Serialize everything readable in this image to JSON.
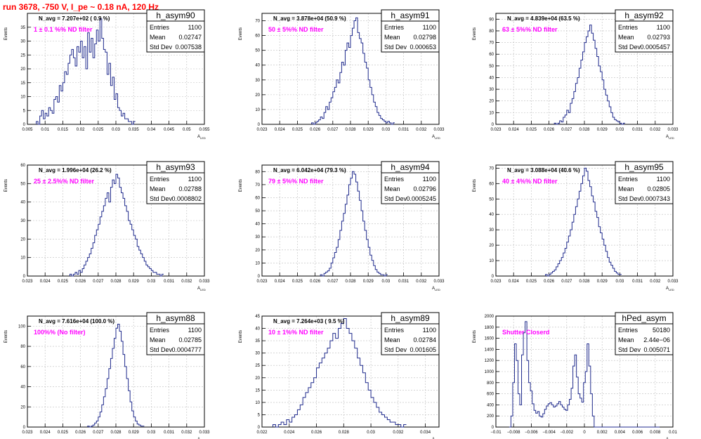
{
  "page_title": "run 3678,  -750 V, I_pe ~ 0.18 nA, 120 Hz",
  "stat_labels": {
    "entries": "Entries",
    "mean": "Mean",
    "stddev": "Std Dev"
  },
  "y_axis_label": "Events",
  "x_axis_label": "A",
  "x_axis_label_sub": "LED",
  "colors": {
    "line": "#1f2a8c",
    "annotation": "#ff00ff",
    "title": "#ff0000",
    "grid": "#bdbdbd"
  },
  "chart_data": [
    {
      "type": "histogram",
      "name": "h_asym90",
      "navg_text": "N_avg = 7.207e+02 ( 0.9 %)",
      "filter_text": "1 ± 0.1 %% ND filter",
      "entries": "1100",
      "mean": "0.02747",
      "stddev": "0.007538",
      "xlim": [
        0.005,
        0.055
      ],
      "ylim": [
        0,
        40
      ],
      "x_ticks": [
        0.005,
        0.01,
        0.015,
        0.02,
        0.025,
        0.03,
        0.035,
        0.04,
        0.045,
        0.05,
        0.055
      ],
      "x_tick_labels": [
        "0.005",
        "0.01",
        "0.015",
        "0.02",
        "0.025",
        "0.03",
        "0.035",
        "0.04",
        "0.045",
        "0.05",
        "0.055"
      ],
      "y_ticks": [
        0,
        5,
        10,
        15,
        20,
        25,
        30,
        35
      ],
      "bin_start": 0.0075,
      "bin_width": 0.0005,
      "counts": [
        1,
        0,
        3,
        5,
        2,
        4,
        3,
        6,
        5,
        4,
        9,
        10,
        8,
        14,
        12,
        15,
        19,
        18,
        22,
        25,
        27,
        24,
        21,
        28,
        26,
        30,
        24,
        28,
        20,
        33,
        26,
        31,
        24,
        29,
        34,
        30,
        38,
        31,
        27,
        26,
        18,
        22,
        14,
        17,
        9,
        11,
        6,
        5,
        3,
        4,
        2,
        2,
        1,
        1,
        0,
        1
      ]
    },
    {
      "type": "histogram",
      "name": "h_asym91",
      "navg_text": "N_avg = 3.878e+04 (50.9 %)",
      "filter_text": "50 ± 5%% ND filter",
      "entries": "1100",
      "mean": "0.02798",
      "stddev": "0.000653",
      "xlim": [
        0.023,
        0.033
      ],
      "ylim": [
        0,
        75
      ],
      "x_ticks": [
        0.023,
        0.024,
        0.025,
        0.026,
        0.027,
        0.028,
        0.029,
        0.03,
        0.031,
        0.032,
        0.033
      ],
      "x_tick_labels": [
        "0.023",
        "0.024",
        "0.025",
        "0.026",
        "0.027",
        "0.028",
        "0.029",
        "0.03",
        "0.031",
        "0.032",
        "0.033"
      ],
      "y_ticks": [
        0,
        10,
        20,
        30,
        40,
        50,
        60,
        70
      ],
      "bin_start": 0.0258,
      "bin_width": 0.0001,
      "counts": [
        1,
        0,
        1,
        2,
        3,
        5,
        4,
        8,
        12,
        10,
        15,
        18,
        22,
        25,
        30,
        28,
        35,
        42,
        40,
        50,
        55,
        52,
        60,
        65,
        70,
        72,
        62,
        58,
        55,
        48,
        42,
        38,
        30,
        25,
        20,
        15,
        12,
        8,
        6,
        4,
        3,
        2,
        1,
        2,
        1,
        0,
        1
      ]
    },
    {
      "type": "histogram",
      "name": "h_asym92",
      "navg_text": "N_avg = 4.839e+04 (63.5 %)",
      "filter_text": "63 ± 5%% ND filter",
      "entries": "1100",
      "mean": "0.02793",
      "stddev": "0.0005457",
      "xlim": [
        0.023,
        0.033
      ],
      "ylim": [
        0,
        95
      ],
      "x_ticks": [
        0.023,
        0.024,
        0.025,
        0.026,
        0.027,
        0.028,
        0.029,
        0.03,
        0.031,
        0.032,
        0.033
      ],
      "x_tick_labels": [
        "0.023",
        "0.024",
        "0.025",
        "0.026",
        "0.027",
        "0.028",
        "0.029",
        "0.03",
        "0.031",
        "0.032",
        "0.033"
      ],
      "y_ticks": [
        0,
        10,
        20,
        30,
        40,
        50,
        60,
        70,
        80,
        90
      ],
      "bin_start": 0.0263,
      "bin_width": 0.0001,
      "counts": [
        1,
        0,
        1,
        3,
        2,
        6,
        8,
        12,
        10,
        18,
        22,
        28,
        35,
        40,
        48,
        55,
        62,
        70,
        75,
        80,
        85,
        78,
        72,
        65,
        58,
        50,
        45,
        38,
        30,
        25,
        20,
        15,
        10,
        6,
        4,
        3,
        2,
        1,
        0,
        1
      ]
    },
    {
      "type": "histogram",
      "name": "h_asym93",
      "navg_text": "N_avg = 1.996e+04 (26.2 %)",
      "filter_text": "25 ± 2.5%% ND filter",
      "entries": "1100",
      "mean": "0.02788",
      "stddev": "0.0008802",
      "xlim": [
        0.023,
        0.033
      ],
      "ylim": [
        0,
        60
      ],
      "x_ticks": [
        0.023,
        0.024,
        0.025,
        0.026,
        0.027,
        0.028,
        0.029,
        0.03,
        0.031,
        0.032,
        0.033
      ],
      "x_tick_labels": [
        "0.023",
        "0.024",
        "0.025",
        "0.026",
        "0.027",
        "0.028",
        "0.029",
        "0.03",
        "0.031",
        "0.032",
        "0.033"
      ],
      "y_ticks": [
        0,
        10,
        20,
        30,
        40,
        50,
        60
      ],
      "bin_start": 0.0254,
      "bin_width": 0.0001,
      "counts": [
        1,
        0,
        1,
        2,
        1,
        3,
        2,
        4,
        6,
        8,
        10,
        12,
        15,
        18,
        22,
        25,
        28,
        32,
        35,
        38,
        42,
        45,
        40,
        48,
        52,
        50,
        55,
        53,
        48,
        45,
        42,
        38,
        35,
        30,
        28,
        25,
        22,
        20,
        16,
        14,
        12,
        10,
        8,
        6,
        5,
        4,
        3,
        2,
        2,
        1,
        1,
        0,
        1
      ]
    },
    {
      "type": "histogram",
      "name": "h_asym94",
      "navg_text": "N_avg = 6.042e+04 (79.3 %)",
      "filter_text": "79 ± 5%% ND filter",
      "entries": "1100",
      "mean": "0.02796",
      "stddev": "0.0005245",
      "xlim": [
        0.023,
        0.033
      ],
      "ylim": [
        0,
        85
      ],
      "x_ticks": [
        0.023,
        0.024,
        0.025,
        0.026,
        0.027,
        0.028,
        0.029,
        0.03,
        0.031,
        0.032,
        0.033
      ],
      "x_tick_labels": [
        "0.023",
        "0.024",
        "0.025",
        "0.026",
        "0.027",
        "0.028",
        "0.029",
        "0.03",
        "0.031",
        "0.032",
        "0.033"
      ],
      "y_ticks": [
        0,
        10,
        20,
        30,
        40,
        50,
        60,
        70,
        80
      ],
      "bin_start": 0.0263,
      "bin_width": 0.0001,
      "counts": [
        1,
        0,
        2,
        3,
        4,
        6,
        10,
        14,
        18,
        22,
        28,
        35,
        42,
        48,
        55,
        62,
        70,
        75,
        80,
        78,
        72,
        65,
        58,
        50,
        42,
        35,
        28,
        22,
        16,
        12,
        8,
        5,
        3,
        2,
        1,
        1,
        0,
        1
      ]
    },
    {
      "type": "histogram",
      "name": "h_asym95",
      "navg_text": "N_avg = 3.088e+04 (40.6 %)",
      "filter_text": "40 ± 4%% ND filter",
      "entries": "1100",
      "mean": "0.02805",
      "stddev": "0.0007343",
      "xlim": [
        0.023,
        0.033
      ],
      "ylim": [
        0,
        72
      ],
      "x_ticks": [
        0.023,
        0.024,
        0.025,
        0.026,
        0.027,
        0.028,
        0.029,
        0.03,
        0.031,
        0.032,
        0.033
      ],
      "x_tick_labels": [
        "0.023",
        "0.024",
        "0.025",
        "0.026",
        "0.027",
        "0.028",
        "0.029",
        "0.03",
        "0.031",
        "0.032",
        "0.033"
      ],
      "y_ticks": [
        0,
        10,
        20,
        30,
        40,
        50,
        60,
        70
      ],
      "bin_start": 0.0258,
      "bin_width": 0.0001,
      "counts": [
        1,
        0,
        1,
        2,
        3,
        4,
        6,
        8,
        10,
        12,
        15,
        18,
        22,
        26,
        30,
        35,
        40,
        45,
        50,
        55,
        60,
        65,
        70,
        68,
        62,
        58,
        52,
        48,
        42,
        38,
        32,
        28,
        24,
        20,
        16,
        12,
        9,
        7,
        5,
        3,
        2,
        1,
        1
      ]
    },
    {
      "type": "histogram",
      "name": "h_asym88",
      "navg_text": "N_avg = 7.616e+04 (100.0 %)",
      "filter_text": "100%% (No filter)",
      "entries": "1100",
      "mean": "0.02785",
      "stddev": "0.0004777",
      "xlim": [
        0.023,
        0.033
      ],
      "ylim": [
        0,
        110
      ],
      "x_ticks": [
        0.023,
        0.024,
        0.025,
        0.026,
        0.027,
        0.028,
        0.029,
        0.03,
        0.031,
        0.032,
        0.033
      ],
      "x_tick_labels": [
        "0.023",
        "0.024",
        "0.025",
        "0.026",
        "0.027",
        "0.028",
        "0.029",
        "0.03",
        "0.031",
        "0.032",
        "0.033"
      ],
      "y_ticks": [
        0,
        20,
        40,
        60,
        80,
        100
      ],
      "bin_start": 0.0264,
      "bin_width": 0.0001,
      "counts": [
        1,
        0,
        1,
        2,
        4,
        6,
        10,
        15,
        22,
        30,
        38,
        48,
        58,
        68,
        78,
        88,
        98,
        102,
        95,
        85,
        72,
        60,
        48,
        36,
        25,
        16,
        10,
        6,
        3,
        2,
        1,
        1
      ]
    },
    {
      "type": "histogram",
      "name": "h_asym89",
      "navg_text": "N_avg = 7.264e+03 ( 9.5 %)",
      "filter_text": "10 ± 1%% ND filter",
      "entries": "1100",
      "mean": "0.02784",
      "stddev": "0.001605",
      "xlim": [
        0.022,
        0.035
      ],
      "ylim": [
        0,
        45
      ],
      "x_ticks": [
        0.022,
        0.024,
        0.026,
        0.028,
        0.03,
        0.032,
        0.034
      ],
      "x_tick_labels": [
        "0.022",
        "0.024",
        "0.026",
        "0.028",
        "0.03",
        "0.032",
        "0.034"
      ],
      "y_ticks": [
        0,
        5,
        10,
        15,
        20,
        25,
        30,
        35,
        40,
        45
      ],
      "bin_start": 0.0228,
      "bin_width": 0.0002,
      "counts": [
        1,
        0,
        1,
        2,
        1,
        3,
        2,
        4,
        5,
        7,
        9,
        12,
        14,
        16,
        18,
        20,
        24,
        26,
        28,
        30,
        32,
        35,
        38,
        36,
        40,
        42,
        44,
        40,
        38,
        35,
        32,
        28,
        25,
        22,
        18,
        15,
        12,
        10,
        8,
        6,
        5,
        4,
        3,
        2,
        2,
        1,
        1,
        0,
        1
      ]
    },
    {
      "type": "histogram",
      "name": "hPed_asym",
      "navg_text": "",
      "filter_text": "Shutter Closerd",
      "entries": "50180",
      "mean": "2.44e−06",
      "stddev": "0.005071",
      "xlim": [
        -0.01,
        0.01
      ],
      "ylim": [
        0,
        2000
      ],
      "x_ticks": [
        -0.01,
        -0.008,
        -0.006,
        -0.004,
        -0.002,
        0,
        0.002,
        0.004,
        0.006,
        0.008,
        0.01
      ],
      "x_tick_labels": [
        "−0.01",
        "−0.008",
        "−0.006",
        "−0.004",
        "−0.002",
        "0",
        "0.002",
        "0.004",
        "0.006",
        "0.008",
        "0.01"
      ],
      "y_ticks": [
        0,
        200,
        400,
        600,
        800,
        1000,
        1200,
        1400,
        1600,
        1800,
        2000
      ],
      "bin_start": -0.0085,
      "bin_width": 0.0002,
      "counts": [
        0,
        200,
        800,
        1500,
        1200,
        600,
        400,
        1300,
        1700,
        1900,
        1200,
        800,
        650,
        420,
        300,
        250,
        280,
        200,
        180,
        240,
        320,
        380,
        420,
        440,
        400,
        360,
        380,
        420,
        460,
        400,
        360,
        320,
        300,
        400,
        500,
        700,
        1100,
        1300,
        900,
        600,
        520,
        450,
        800,
        1000,
        1500,
        1100,
        600,
        200,
        0,
        0,
        0,
        0,
        0,
        0,
        0,
        0,
        0,
        0,
        0,
        0,
        0,
        0,
        0,
        0,
        0,
        0,
        0,
        0,
        0,
        0,
        0,
        0,
        0,
        0,
        0,
        0,
        0,
        0,
        0,
        0,
        0,
        0,
        0,
        0,
        0
      ]
    }
  ]
}
